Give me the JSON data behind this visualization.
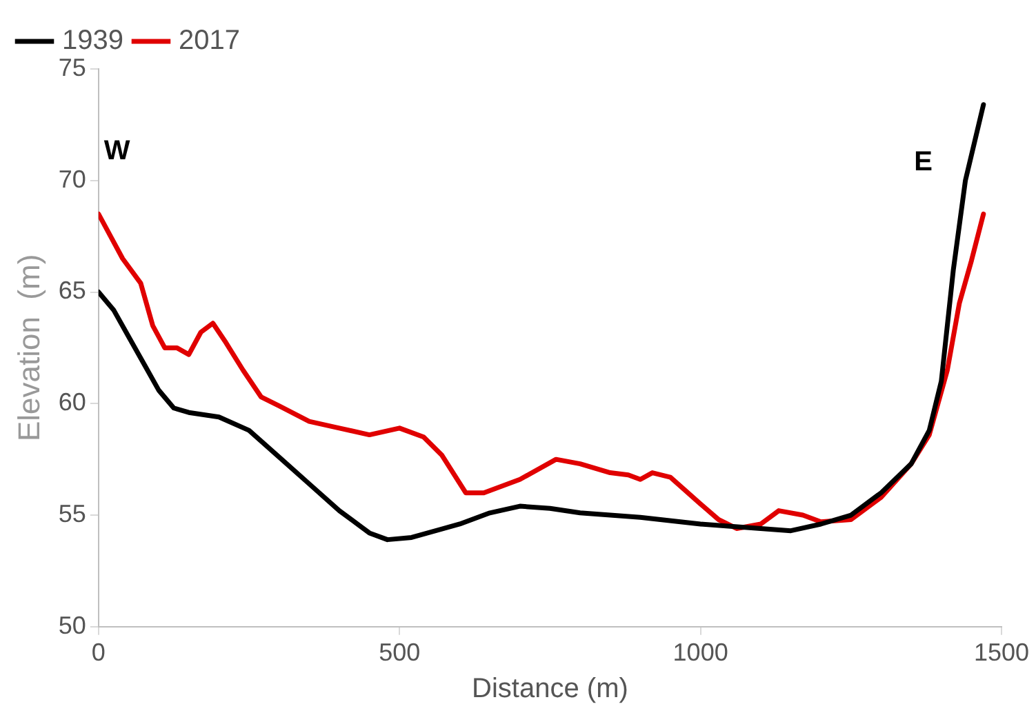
{
  "chart_data": {
    "type": "line",
    "xlabel": "Distance (m)",
    "ylabel": "Elevation  (m)",
    "xlim": [
      0,
      1500
    ],
    "xticks": [
      0,
      500,
      1000,
      1500
    ],
    "ylim": [
      50,
      75
    ],
    "yticks": [
      50,
      55,
      60,
      65,
      70,
      75
    ],
    "grid": false,
    "legend": "top left",
    "marker": "none",
    "line_style": "solid",
    "annotations": [
      "W",
      "E"
    ],
    "series": [
      {
        "name": "1939",
        "color": "#000000",
        "x": [
          0,
          25,
          50,
          75,
          100,
          125,
          150,
          200,
          250,
          300,
          350,
          400,
          450,
          480,
          520,
          600,
          650,
          700,
          750,
          800,
          900,
          1000,
          1050,
          1100,
          1150,
          1200,
          1250,
          1300,
          1350,
          1380,
          1400,
          1420,
          1440,
          1470
        ],
        "values": [
          65,
          64.2,
          63,
          61.8,
          60.6,
          59.8,
          59.6,
          59.4,
          58.8,
          57.6,
          56.4,
          55.2,
          54.2,
          53.9,
          54,
          54.6,
          55.1,
          55.4,
          55.3,
          55.1,
          54.9,
          54.6,
          54.5,
          54.4,
          54.3,
          54.6,
          55,
          56,
          57.3,
          58.8,
          61,
          66,
          70,
          73.4
        ]
      },
      {
        "name": "2017",
        "color": "#e00000",
        "x": [
          0,
          20,
          40,
          70,
          90,
          110,
          130,
          150,
          170,
          190,
          210,
          240,
          270,
          300,
          350,
          400,
          450,
          500,
          540,
          570,
          610,
          640,
          700,
          760,
          800,
          850,
          880,
          900,
          920,
          950,
          1000,
          1030,
          1060,
          1100,
          1130,
          1170,
          1200,
          1250,
          1300,
          1350,
          1380,
          1410,
          1430,
          1450,
          1470
        ],
        "values": [
          68.5,
          67.5,
          66.5,
          65.4,
          63.5,
          62.5,
          62.5,
          62.2,
          63.2,
          63.6,
          62.8,
          61.5,
          60.3,
          59.9,
          59.2,
          58.9,
          58.6,
          58.9,
          58.5,
          57.7,
          56,
          56,
          56.6,
          57.5,
          57.3,
          56.9,
          56.8,
          56.6,
          56.9,
          56.7,
          55.5,
          54.8,
          54.4,
          54.6,
          55.2,
          55,
          54.7,
          54.8,
          55.8,
          57.3,
          58.6,
          61.5,
          64.5,
          66.4,
          68.5
        ]
      }
    ]
  }
}
